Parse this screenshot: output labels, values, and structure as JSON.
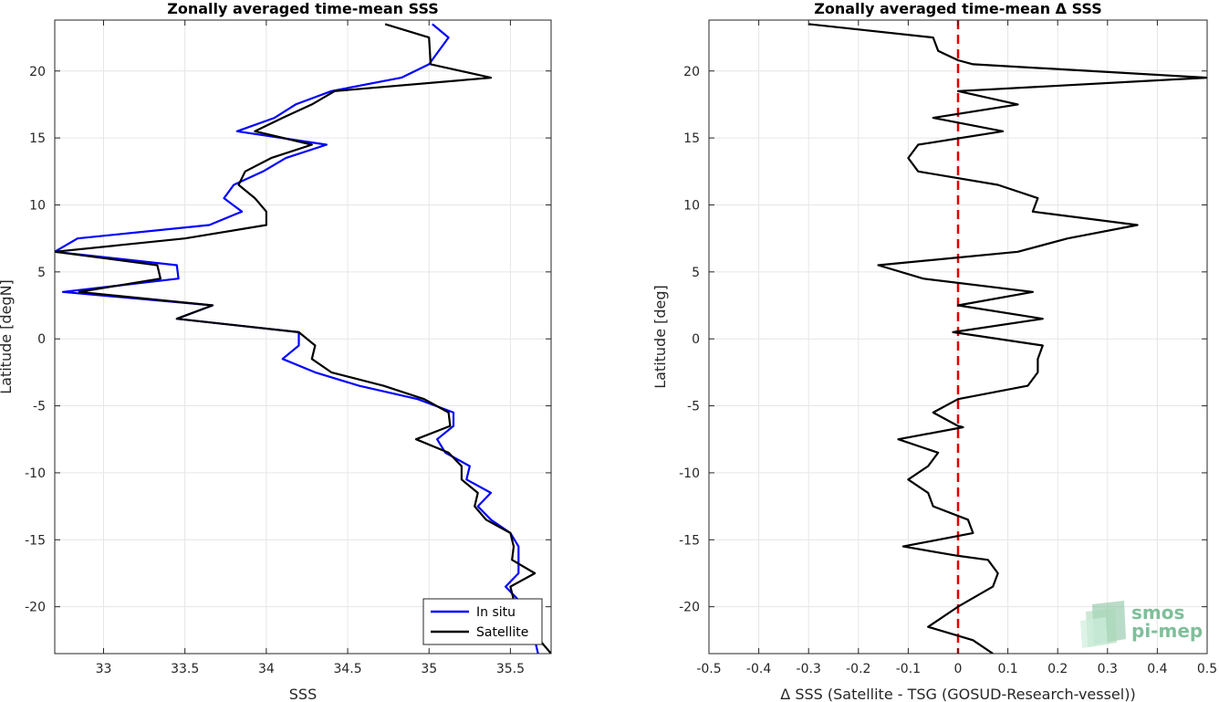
{
  "colors": {
    "in_situ": "#0000ff",
    "satellite": "#000000",
    "zero_line": "#e00000",
    "grid": "#e6e6e6",
    "logo": "#7fbf9a"
  },
  "logo": {
    "line1": "smos",
    "line2": "pi-mep"
  },
  "chart_data": [
    {
      "type": "line",
      "title": "Zonally averaged time-mean SSS",
      "xlabel": "SSS",
      "ylabel": "Latitude [degN]",
      "xlim": [
        32.7,
        35.75
      ],
      "ylim": [
        -23.5,
        23.8
      ],
      "xticks": [
        33,
        33.5,
        34,
        34.5,
        35,
        35.5
      ],
      "yticks": [
        -20,
        -15,
        -10,
        -5,
        0,
        5,
        10,
        15,
        20
      ],
      "xtick_labels": [
        "33",
        "33.5",
        "34",
        "34.5",
        "35",
        "35.5"
      ],
      "ytick_labels": [
        "-20",
        "-15",
        "-10",
        "-5",
        "0",
        "5",
        "10",
        "15",
        "20"
      ],
      "grid": true,
      "legend_position": "bottom-right",
      "series": [
        {
          "name": "In situ",
          "color": "#0000ff",
          "points": [
            [
              35.02,
              23.5
            ],
            [
              35.12,
              22.5
            ],
            [
              35.0,
              20.5
            ],
            [
              34.83,
              19.5
            ],
            [
              34.4,
              18.5
            ],
            [
              34.18,
              17.5
            ],
            [
              34.05,
              16.5
            ],
            [
              33.82,
              15.5
            ],
            [
              34.37,
              14.5
            ],
            [
              34.12,
              13.5
            ],
            [
              33.98,
              12.5
            ],
            [
              33.8,
              11.5
            ],
            [
              33.74,
              10.5
            ],
            [
              33.85,
              9.5
            ],
            [
              33.65,
              8.5
            ],
            [
              32.84,
              7.5
            ],
            [
              32.7,
              6.5
            ],
            [
              33.45,
              5.5
            ],
            [
              33.46,
              4.5
            ],
            [
              32.75,
              3.5
            ],
            [
              33.67,
              2.5
            ],
            [
              33.45,
              1.5
            ],
            [
              34.2,
              0.5
            ],
            [
              34.2,
              -0.5
            ],
            [
              34.1,
              -1.5
            ],
            [
              34.3,
              -2.5
            ],
            [
              34.57,
              -3.5
            ],
            [
              34.93,
              -4.5
            ],
            [
              35.15,
              -5.5
            ],
            [
              35.15,
              -6.5
            ],
            [
              35.05,
              -7.5
            ],
            [
              35.1,
              -8.5
            ],
            [
              35.25,
              -9.5
            ],
            [
              35.23,
              -10.5
            ],
            [
              35.38,
              -11.5
            ],
            [
              35.3,
              -12.5
            ],
            [
              35.38,
              -13.5
            ],
            [
              35.5,
              -14.5
            ],
            [
              35.55,
              -15.5
            ],
            [
              35.55,
              -16.5
            ],
            [
              35.55,
              -17.5
            ],
            [
              35.47,
              -18.5
            ],
            [
              35.55,
              -19.5
            ],
            [
              35.62,
              -20.5
            ],
            [
              35.6,
              -21.5
            ],
            [
              35.65,
              -22.5
            ],
            [
              35.67,
              -23.5
            ]
          ]
        },
        {
          "name": "Satellite",
          "color": "#000000",
          "points": [
            [
              34.73,
              23.5
            ],
            [
              35.0,
              22.5
            ],
            [
              35.01,
              20.5
            ],
            [
              35.38,
              19.5
            ],
            [
              34.42,
              18.5
            ],
            [
              34.28,
              17.5
            ],
            [
              34.1,
              16.5
            ],
            [
              33.93,
              15.5
            ],
            [
              34.28,
              14.5
            ],
            [
              34.03,
              13.5
            ],
            [
              33.87,
              12.5
            ],
            [
              33.83,
              11.5
            ],
            [
              33.93,
              10.5
            ],
            [
              34.0,
              9.5
            ],
            [
              34.0,
              8.5
            ],
            [
              33.5,
              7.5
            ],
            [
              32.7,
              6.5
            ],
            [
              33.33,
              5.5
            ],
            [
              33.35,
              4.5
            ],
            [
              32.85,
              3.5
            ],
            [
              33.67,
              2.5
            ],
            [
              33.45,
              1.5
            ],
            [
              34.2,
              0.5
            ],
            [
              34.3,
              -0.5
            ],
            [
              34.28,
              -1.5
            ],
            [
              34.4,
              -2.5
            ],
            [
              34.72,
              -3.5
            ],
            [
              34.97,
              -4.5
            ],
            [
              35.12,
              -5.5
            ],
            [
              35.13,
              -6.5
            ],
            [
              34.92,
              -7.5
            ],
            [
              35.12,
              -8.5
            ],
            [
              35.2,
              -9.5
            ],
            [
              35.2,
              -10.5
            ],
            [
              35.3,
              -11.5
            ],
            [
              35.28,
              -12.5
            ],
            [
              35.35,
              -13.5
            ],
            [
              35.5,
              -14.5
            ],
            [
              35.52,
              -15.5
            ],
            [
              35.51,
              -16.5
            ],
            [
              35.65,
              -17.5
            ],
            [
              35.5,
              -18.5
            ],
            [
              35.52,
              -19.5
            ],
            [
              35.6,
              -20.5
            ],
            [
              35.62,
              -21.5
            ],
            [
              35.68,
              -22.5
            ],
            [
              35.75,
              -23.5
            ]
          ]
        }
      ]
    },
    {
      "type": "line",
      "title": "Zonally averaged time-mean Δ SSS",
      "xlabel": "Δ SSS (Satellite - TSG (GOSUD-Research-vessel))",
      "ylabel": "Latitude [deg]",
      "xlim": [
        -0.5,
        0.5
      ],
      "ylim": [
        -23.5,
        23.8
      ],
      "xticks": [
        -0.5,
        -0.4,
        -0.3,
        -0.2,
        -0.1,
        0,
        0.1,
        0.2,
        0.3,
        0.4,
        0.5
      ],
      "yticks": [
        -20,
        -15,
        -10,
        -5,
        0,
        5,
        10,
        15,
        20
      ],
      "xtick_labels": [
        "-0.5",
        "-0.4",
        "-0.3",
        "-0.2",
        "-0.1",
        "0",
        "0.1",
        "0.2",
        "0.3",
        "0.4",
        "0.5"
      ],
      "ytick_labels": [
        "-20",
        "-15",
        "-10",
        "-5",
        "0",
        "5",
        "10",
        "15",
        "20"
      ],
      "grid": true,
      "reference_line": {
        "x": 0,
        "style": "dashed",
        "color": "#e00000"
      },
      "series": [
        {
          "name": "",
          "color": "#000000",
          "points": [
            [
              -0.3,
              23.5
            ],
            [
              -0.05,
              22.5
            ],
            [
              -0.04,
              21.5
            ],
            [
              0.0,
              20.8
            ],
            [
              0.03,
              20.5
            ],
            [
              0.5,
              19.5
            ],
            [
              0.0,
              18.5
            ],
            [
              0.12,
              17.5
            ],
            [
              -0.05,
              16.5
            ],
            [
              0.09,
              15.5
            ],
            [
              -0.08,
              14.5
            ],
            [
              -0.1,
              13.5
            ],
            [
              -0.08,
              12.5
            ],
            [
              0.08,
              11.5
            ],
            [
              0.16,
              10.5
            ],
            [
              0.15,
              9.5
            ],
            [
              0.36,
              8.5
            ],
            [
              0.22,
              7.5
            ],
            [
              0.12,
              6.5
            ],
            [
              -0.16,
              5.5
            ],
            [
              -0.07,
              4.5
            ],
            [
              0.15,
              3.5
            ],
            [
              0.0,
              2.5
            ],
            [
              0.17,
              1.5
            ],
            [
              -0.01,
              0.5
            ],
            [
              0.17,
              -0.5
            ],
            [
              0.16,
              -1.5
            ],
            [
              0.16,
              -2.5
            ],
            [
              0.14,
              -3.5
            ],
            [
              0.0,
              -4.5
            ],
            [
              -0.05,
              -5.5
            ],
            [
              0.0,
              -6.5
            ],
            [
              0.01,
              -6.6
            ],
            [
              -0.12,
              -7.5
            ],
            [
              -0.04,
              -8.5
            ],
            [
              -0.06,
              -9.5
            ],
            [
              -0.1,
              -10.5
            ],
            [
              -0.06,
              -11.5
            ],
            [
              -0.05,
              -12.5
            ],
            [
              0.02,
              -13.5
            ],
            [
              0.03,
              -14.5
            ],
            [
              -0.11,
              -15.5
            ],
            [
              0.0,
              -16.2
            ],
            [
              0.06,
              -16.5
            ],
            [
              0.08,
              -17.5
            ],
            [
              0.07,
              -18.5
            ],
            [
              0.0,
              -20.0
            ],
            [
              -0.06,
              -21.5
            ],
            [
              0.03,
              -22.5
            ],
            [
              0.07,
              -23.5
            ]
          ]
        }
      ]
    }
  ]
}
